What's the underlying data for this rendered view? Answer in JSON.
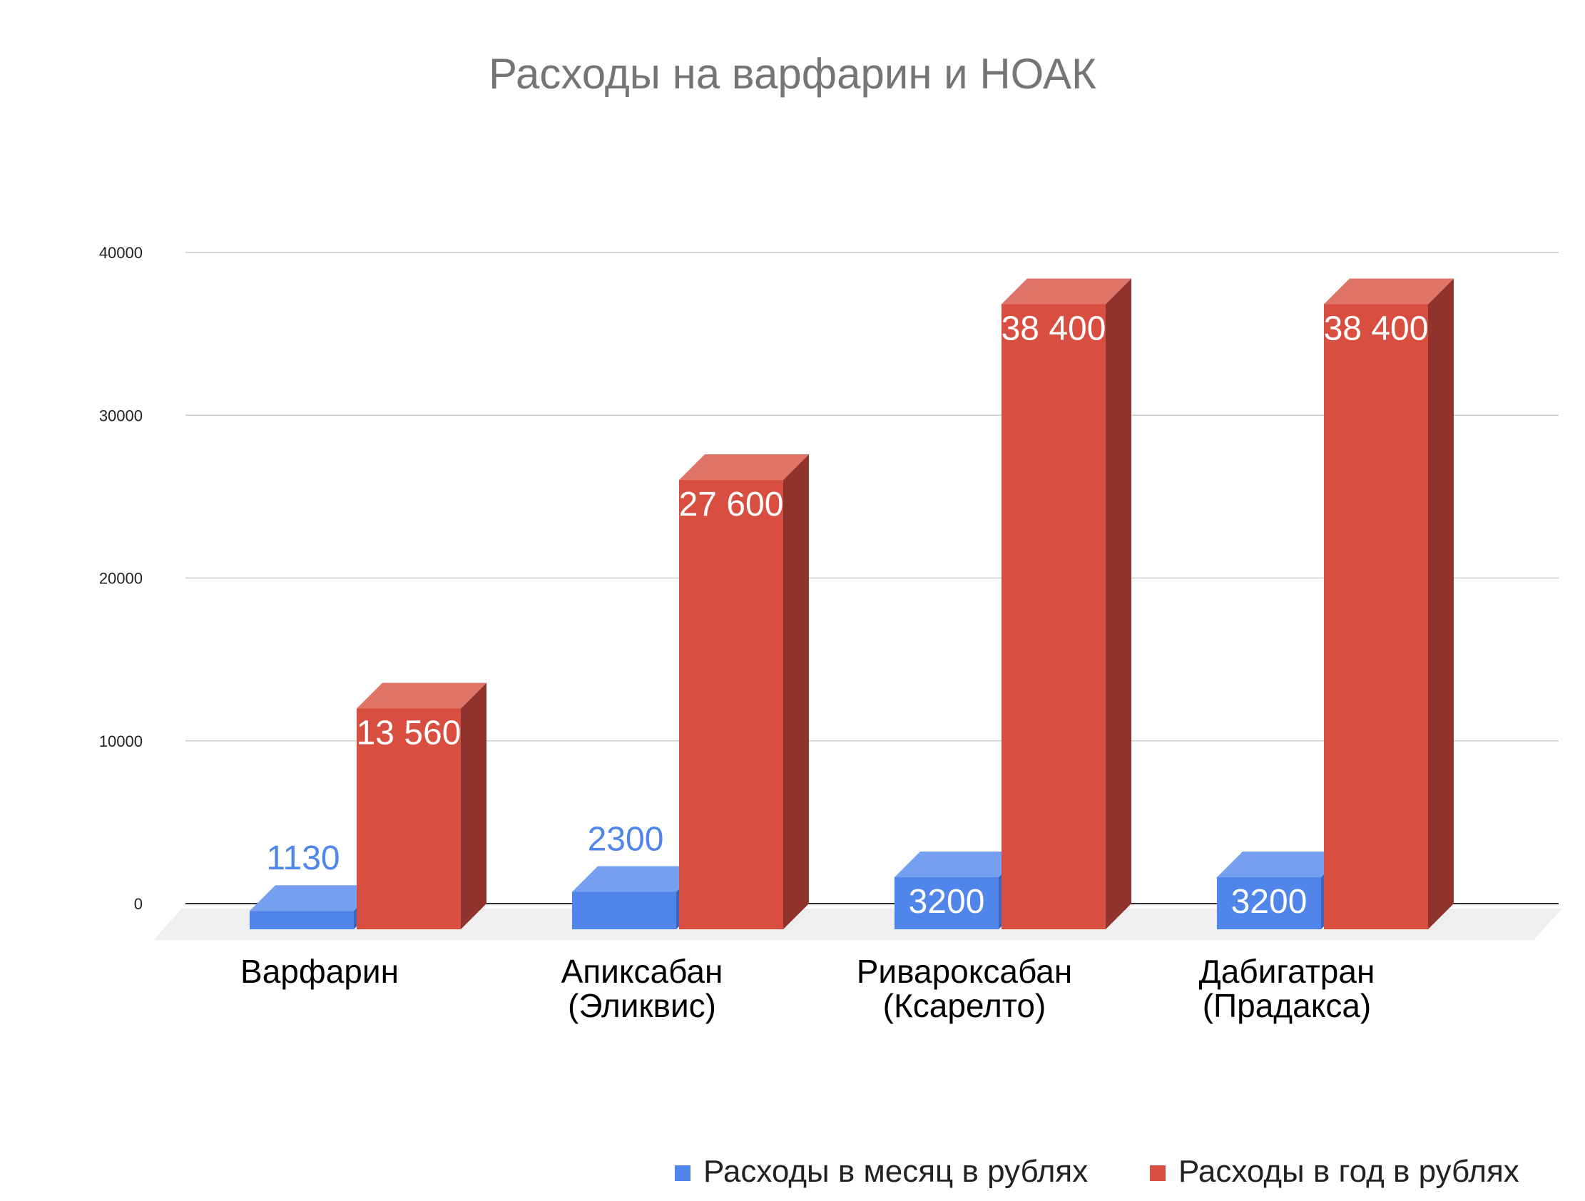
{
  "chart_data": {
    "type": "bar",
    "title": "Расходы на варфарин и НОАК",
    "xlabel": "",
    "ylabel": "",
    "ylim": [
      0,
      40000
    ],
    "yticks": [
      0,
      10000,
      20000,
      30000,
      40000
    ],
    "ytick_labels": [
      "0",
      "10000",
      "20000",
      "30000",
      "40000"
    ],
    "grid": true,
    "legend_position": "bottom-right",
    "categories": [
      [
        "Варфарин"
      ],
      [
        "Апиксабан",
        "(Эликвис)"
      ],
      [
        "Ривароксабан",
        "(Ксарелто)"
      ],
      [
        "Дабигатран",
        "(Прадакса)"
      ]
    ],
    "series": [
      {
        "name": "Расходы в месяц в рублях",
        "values": [
          1130,
          2300,
          3200,
          3200
        ],
        "labels": [
          "1130",
          "2300",
          "3200",
          "3200"
        ],
        "label_inside": [
          false,
          false,
          true,
          true
        ],
        "color": "#5085ea",
        "top_color": "#75a0f0",
        "side_color": "#3d66b8"
      },
      {
        "name": "Расходы в год в рублях",
        "values": [
          13560,
          27600,
          38400,
          38400
        ],
        "labels": [
          "13 560",
          "27 600",
          "38 400",
          "38 400"
        ],
        "label_inside": [
          true,
          true,
          true,
          true
        ],
        "color": "#d84f41",
        "top_color": "#e07467",
        "side_color": "#8f332c"
      }
    ]
  }
}
